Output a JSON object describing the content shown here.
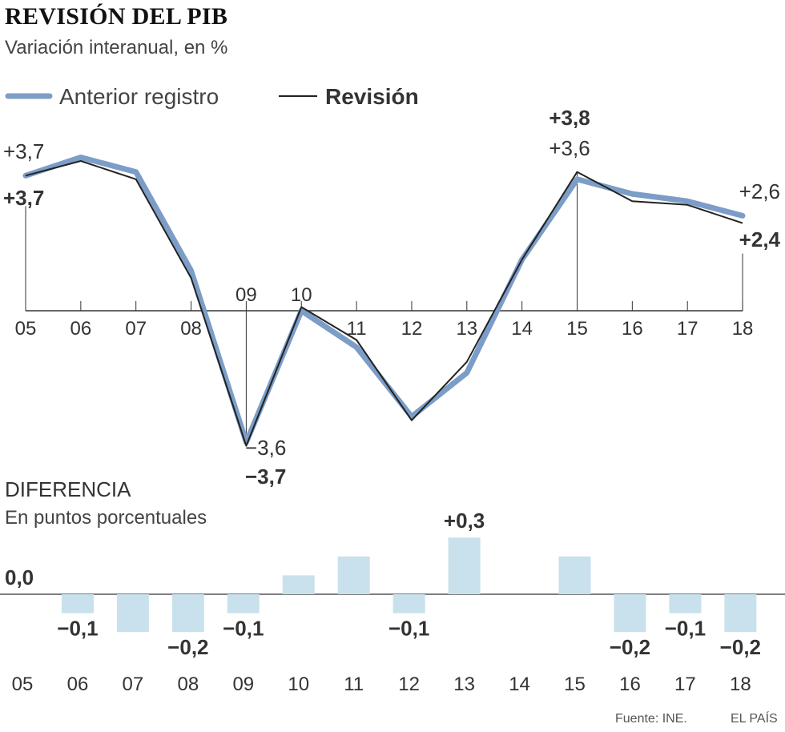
{
  "title": "REVISIÓN DEL PIB",
  "subtitle": "Variación interanual, en %",
  "legend": {
    "previous": "Anterior registro",
    "revision": "Revisión"
  },
  "colors": {
    "previous": "#7c9dc7",
    "revision": "#222222",
    "bars": "#c8e1ec",
    "axis": "#333333",
    "text": "#333333"
  },
  "chart_data": [
    {
      "type": "line",
      "title": "REVISIÓN DEL PIB",
      "subtitle": "Variación interanual, en %",
      "x": [
        "05",
        "06",
        "07",
        "08",
        "09",
        "10",
        "11",
        "12",
        "13",
        "14",
        "15",
        "16",
        "17",
        "18"
      ],
      "series": [
        {
          "name": "Anterior registro",
          "values": [
            3.7,
            4.2,
            3.8,
            1.1,
            -3.6,
            0.0,
            -1.0,
            -2.9,
            -1.7,
            1.4,
            3.6,
            3.2,
            3.0,
            2.6
          ]
        },
        {
          "name": "Revisión",
          "values": [
            3.7,
            4.1,
            3.6,
            0.9,
            -3.7,
            0.1,
            -0.8,
            -3.0,
            -1.4,
            1.4,
            3.8,
            3.0,
            2.9,
            2.4
          ]
        }
      ],
      "ylim": [
        -3.7,
        4.2
      ],
      "annotations": [
        {
          "x": "05",
          "prev_label": "+3,7",
          "rev_label": "+3,7"
        },
        {
          "x": "09",
          "prev_label": "−3,6",
          "rev_label": "−3,7"
        },
        {
          "x": "15",
          "prev_label": "+3,6",
          "rev_label": "+3,8"
        },
        {
          "x": "18",
          "prev_label": "+2,6",
          "rev_label": "+2,4"
        }
      ]
    },
    {
      "type": "bar",
      "title": "DIFERENCIA",
      "subtitle": "En puntos porcentuales",
      "categories": [
        "05",
        "06",
        "07",
        "08",
        "09",
        "10",
        "11",
        "12",
        "13",
        "14",
        "15",
        "16",
        "17",
        "18"
      ],
      "values": [
        0.0,
        -0.1,
        -0.2,
        -0.2,
        -0.1,
        0.1,
        0.2,
        -0.1,
        0.3,
        0.0,
        0.2,
        -0.2,
        -0.1,
        -0.2
      ],
      "value_labels": [
        "0,0",
        "−0,1",
        "",
        "−0,2",
        "−0,1",
        "",
        "",
        "−0,1",
        "+0,3",
        "",
        "",
        "−0,2",
        "−0,1",
        "−0,2"
      ]
    }
  ],
  "footer": {
    "source": "Fuente: INE.",
    "brand": "EL PAÍS"
  }
}
